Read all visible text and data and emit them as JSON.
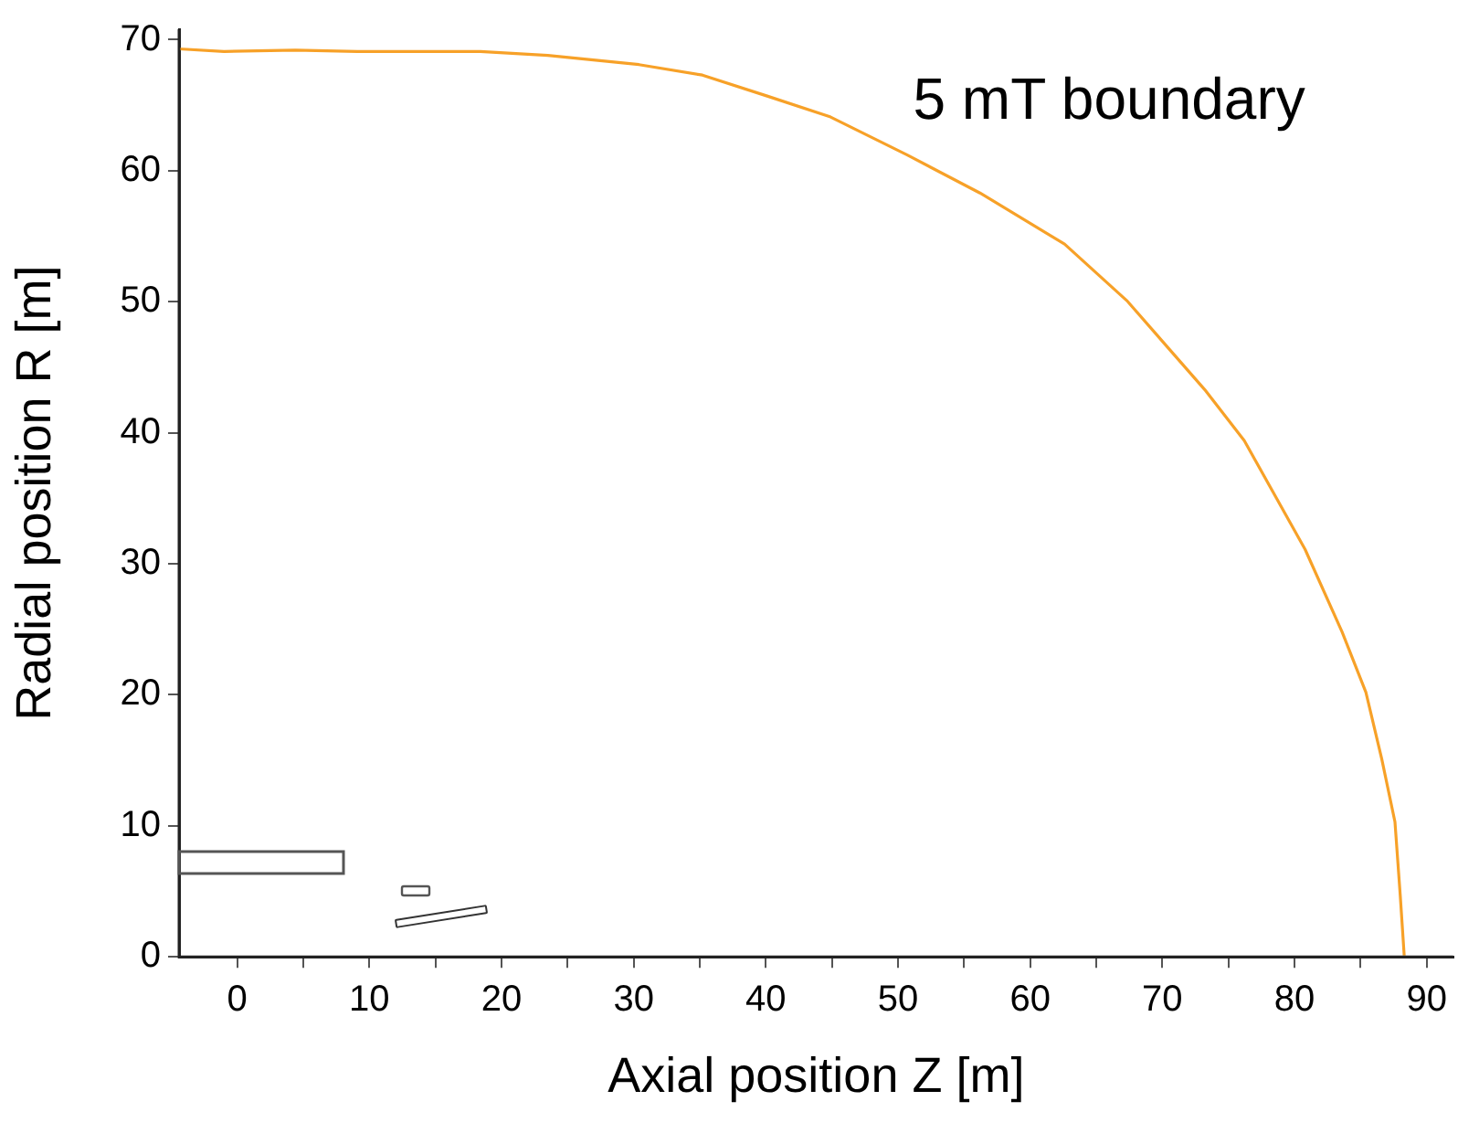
{
  "chart_data": {
    "type": "line",
    "xlabel": "Axial position Z [m]",
    "ylabel": "Radial position R [m]",
    "xlim": [
      -4.4,
      92
    ],
    "ylim": [
      0,
      70.8
    ],
    "xticks": [
      0,
      {
        "value": 5,
        "label": null
      },
      10,
      {
        "value": 15,
        "label": null
      },
      20,
      {
        "value": 25,
        "label": null
      },
      30,
      {
        "value": 35,
        "label": null
      },
      40,
      {
        "value": 45,
        "label": null
      },
      50,
      {
        "value": 55,
        "label": null
      },
      60,
      {
        "value": 65,
        "label": null
      },
      70,
      {
        "value": 75,
        "label": null
      },
      80,
      {
        "value": 85,
        "label": null
      },
      90
    ],
    "yticks": [
      0,
      10,
      20,
      30,
      40,
      50,
      60,
      70
    ],
    "grid": false,
    "legend": false,
    "marker": "none",
    "line_style": "solid",
    "annotations": [
      "5 mT boundary"
    ],
    "series": [
      {
        "color": "#f7a128",
        "x": [
          -4.4,
          -1,
          4.4,
          9.1,
          18.4,
          23.5,
          30.4,
          35.2,
          40.1,
          44.9,
          50.7,
          56.2,
          62.6,
          67.3,
          73.2,
          76.2,
          80.8,
          83.6,
          85.4,
          86.6,
          87.6,
          88,
          88.3
        ],
        "values": [
          69.3,
          69.1,
          69.2,
          69.1,
          69.1,
          68.8,
          68.1,
          67.3,
          65.7,
          64.1,
          61.2,
          58.3,
          54.4,
          50.1,
          43.3,
          39.4,
          31.1,
          24.8,
          20.2,
          15.1,
          10.3,
          4.7,
          0.1
        ]
      }
    ]
  }
}
